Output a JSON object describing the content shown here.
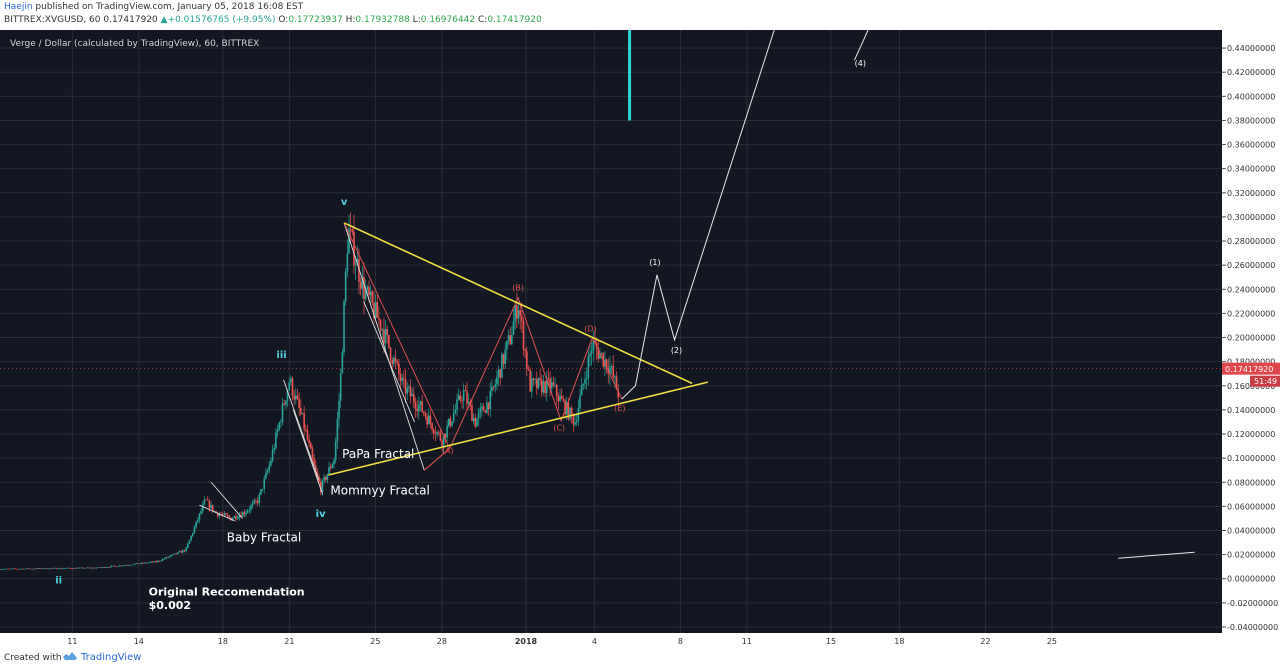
{
  "header": {
    "author": "Haejin",
    "published": " published on TradingView.com, January 05, 2018 16:08 EST",
    "symbol_line_prefix": "BITTREX:XVGUSD, 60  0.17417920 ",
    "change": "+0.01576765 (+9.95%)",
    "o_label": " O:",
    "o_value": "0.17723937",
    "h_label": " H:",
    "h_value": "0.17932788",
    "l_label": " L:",
    "l_value": "0.16976442",
    "c_label": " C:",
    "c_value": "0.17417920"
  },
  "chart_data": {
    "type": "candlestick",
    "title": "Verge / Dollar (calculated by TradingView), 60, BITTREX",
    "ylim": [
      -0.045,
      0.455
    ],
    "xlim": [
      0,
      51
    ],
    "y_ticks": [
      "0.44000000",
      "0.42000000",
      "0.40000000",
      "0.38000000",
      "0.36000000",
      "0.34000000",
      "0.32000000",
      "0.30000000",
      "0.28000000",
      "0.26000000",
      "0.24000000",
      "0.22000000",
      "0.20000000",
      "0.18000000",
      "0.16000000",
      "0.14000000",
      "0.12000000",
      "0.10000000",
      "0.08000000",
      "0.06000000",
      "0.04000000",
      "0.02000000",
      "0.00000000",
      "-0.02000000",
      "-0.04000000"
    ],
    "x_ticks": [
      {
        "label": "11",
        "x": 3.7
      },
      {
        "label": "14",
        "x": 7.1
      },
      {
        "label": "18",
        "x": 11.4
      },
      {
        "label": "21",
        "x": 14.8
      },
      {
        "label": "25",
        "x": 19.2
      },
      {
        "label": "28",
        "x": 22.6
      },
      {
        "label": "2018",
        "x": 26.9
      },
      {
        "label": "4",
        "x": 30.4
      },
      {
        "label": "8",
        "x": 34.8
      },
      {
        "label": "11",
        "x": 38.2
      },
      {
        "label": "15",
        "x": 42.5
      },
      {
        "label": "18",
        "x": 46
      },
      {
        "label": "22",
        "x": 50.4
      },
      {
        "label": "25",
        "x": 53.8
      }
    ],
    "price_path": [
      [
        0,
        0.008
      ],
      [
        5,
        0.009
      ],
      [
        8,
        0.014
      ],
      [
        9.5,
        0.024
      ],
      [
        10.5,
        0.065
      ],
      [
        11,
        0.055
      ],
      [
        11.8,
        0.05
      ],
      [
        12.5,
        0.055
      ],
      [
        13.2,
        0.065
      ],
      [
        13.8,
        0.095
      ],
      [
        14.3,
        0.13
      ],
      [
        14.8,
        0.165
      ],
      [
        15.5,
        0.13
      ],
      [
        16.1,
        0.09
      ],
      [
        16.4,
        0.075
      ],
      [
        17.1,
        0.1
      ],
      [
        17.4,
        0.16
      ],
      [
        17.8,
        0.29
      ],
      [
        18.6,
        0.24
      ],
      [
        19.5,
        0.21
      ],
      [
        20.6,
        0.16
      ],
      [
        21.6,
        0.14
      ],
      [
        22.6,
        0.115
      ],
      [
        23.7,
        0.155
      ],
      [
        24.3,
        0.13
      ],
      [
        25.1,
        0.15
      ],
      [
        26.1,
        0.2
      ],
      [
        26.5,
        0.23
      ],
      [
        27.1,
        0.16
      ],
      [
        28.2,
        0.16
      ],
      [
        29.4,
        0.13
      ],
      [
        30.3,
        0.195
      ],
      [
        31.2,
        0.175
      ],
      [
        31.7,
        0.15
      ]
    ],
    "last_price": "0.17417920",
    "last_price_y": 0.17418,
    "countdown": "51:49",
    "annotations": {
      "wave_labels": [
        {
          "text": "ii",
          "x": 3.0,
          "y": -0.004
        },
        {
          "text": "iii",
          "x": 14.4,
          "y": 0.183
        },
        {
          "text": "v",
          "x": 17.6,
          "y": 0.31
        },
        {
          "text": "iv",
          "x": 16.4,
          "y": 0.051
        }
      ],
      "abcde_labels": [
        {
          "text": "(A)",
          "x": 22.9,
          "y": 0.104
        },
        {
          "text": "(B)",
          "x": 26.5,
          "y": 0.239
        },
        {
          "text": "(C)",
          "x": 28.6,
          "y": 0.123
        },
        {
          "text": "(D)",
          "x": 30.2,
          "y": 0.205
        },
        {
          "text": "(E)",
          "x": 31.7,
          "y": 0.139
        }
      ],
      "projection_labels": [
        {
          "text": "(1)",
          "x": 33.5,
          "y": 0.26
        },
        {
          "text": "(2)",
          "x": 34.6,
          "y": 0.187
        },
        {
          "text": "(4)",
          "x": 44.0,
          "y": 0.425
        }
      ],
      "text_notes": [
        {
          "text": "Baby Fractal",
          "x": 11.6,
          "y": 0.031
        },
        {
          "text": "PaPa Fractal",
          "x": 17.5,
          "y": 0.1
        },
        {
          "text": "Mommyy Fractal",
          "x": 16.9,
          "y": 0.07
        },
        {
          "text": "Original Reccomendation",
          "x": 7.6,
          "y": -0.014
        },
        {
          "text": "$0.002",
          "x": 7.6,
          "y": -0.025
        }
      ],
      "triangle_upper": [
        [
          17.6,
          0.295
        ],
        [
          35.4,
          0.162
        ]
      ],
      "triangle_lower": [
        [
          16.8,
          0.086
        ],
        [
          36.2,
          0.163
        ]
      ],
      "red_waves": [
        [
          17.6,
          0.295
        ],
        [
          23.0,
          0.108
        ],
        [
          26.5,
          0.233
        ],
        [
          28.7,
          0.131
        ],
        [
          30.3,
          0.2
        ],
        [
          31.8,
          0.149
        ]
      ],
      "red_extension_end": [
        21.7,
        0.09
      ],
      "white_projection": [
        [
          31.8,
          0.149
        ],
        [
          32.5,
          0.16
        ],
        [
          33.6,
          0.252
        ],
        [
          34.5,
          0.198
        ],
        [
          39.6,
          0.455
        ]
      ],
      "white_projection_4": [
        [
          43.7,
          0.43
        ],
        [
          44.4,
          0.455
        ]
      ],
      "small_white_line": [
        [
          57.2,
          0.017
        ],
        [
          61.1,
          0.022
        ]
      ],
      "cyan_bar": {
        "x": 32.2,
        "y_top": 0.455,
        "y_bottom": 0.38
      },
      "fractal_channels": [
        {
          "from": [
            10.2,
            0.061
          ],
          "to": [
            12.0,
            0.048
          ]
        },
        {
          "from": [
            10.8,
            0.08
          ],
          "to": [
            12.4,
            0.05
          ]
        },
        {
          "from": [
            14.5,
            0.165
          ],
          "to": [
            16.3,
            0.082
          ]
        },
        {
          "from": [
            15.0,
            0.14
          ],
          "to": [
            16.5,
            0.07
          ]
        },
        {
          "from": [
            17.6,
            0.295
          ],
          "to": [
            21.7,
            0.09
          ]
        },
        {
          "from": [
            18.6,
            0.23
          ],
          "to": [
            21.2,
            0.13
          ]
        }
      ]
    }
  },
  "footer": {
    "created_with": "Created with",
    "brand": "TradingView"
  },
  "colors": {
    "background": "#131722",
    "grid": "#2a2e39",
    "up": "#26a69a",
    "down": "#ef5350",
    "triangle": "#f0e040",
    "wave_red": "#e05050",
    "wave_label_cyan": "#4fd0e0",
    "cyan_bar": "#2fd3d3",
    "price_tag": "#e0464a"
  }
}
